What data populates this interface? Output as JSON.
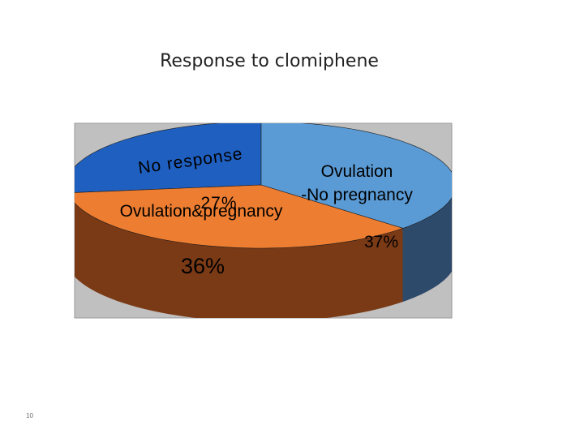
{
  "chart_data": {
    "type": "pie",
    "title": "Response to clomiphene",
    "categories": [
      "No response",
      "Ovulation&pregnancy",
      "Ovulation\n-No pregnancy"
    ],
    "values": [
      27,
      36,
      37
    ],
    "value_labels": [
      "27%",
      "36%",
      "37%"
    ],
    "colors": [
      "#1f5fc0",
      "#ed7d31",
      "#5b9bd5"
    ],
    "side_colors": [
      "#17408a",
      "#7a3a16",
      "#2e4a6b"
    ]
  },
  "page_number": "10"
}
